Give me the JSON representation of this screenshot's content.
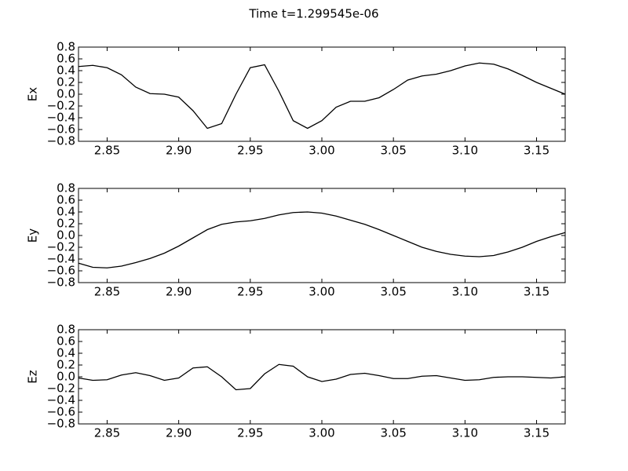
{
  "title": "Time t=1.299545e-06",
  "chart_data": [
    {
      "type": "line",
      "ylabel": "Ex",
      "color": "#000000",
      "x": [
        2.83,
        2.84,
        2.85,
        2.86,
        2.87,
        2.88,
        2.89,
        2.9,
        2.91,
        2.92,
        2.93,
        2.94,
        2.95,
        2.96,
        2.97,
        2.98,
        2.99,
        3.0,
        3.01,
        3.02,
        3.03,
        3.04,
        3.05,
        3.06,
        3.07,
        3.08,
        3.09,
        3.1,
        3.11,
        3.12,
        3.13,
        3.14,
        3.15,
        3.16,
        3.17
      ],
      "values": [
        0.47,
        0.49,
        0.45,
        0.33,
        0.12,
        0.01,
        0.0,
        -0.05,
        -0.28,
        -0.58,
        -0.5,
        0.0,
        0.45,
        0.5,
        0.05,
        -0.45,
        -0.58,
        -0.45,
        -0.22,
        -0.12,
        -0.12,
        -0.06,
        0.08,
        0.24,
        0.31,
        0.34,
        0.4,
        0.48,
        0.53,
        0.51,
        0.43,
        0.32,
        0.2,
        0.1,
        0.0
      ],
      "xlim": [
        2.83,
        3.17
      ],
      "ylim": [
        -0.8,
        0.8
      ],
      "xticks": [
        2.85,
        {
          "value": 2.9,
          "label": "2.90"
        },
        2.95,
        {
          "value": 3.0,
          "label": "3.00"
        },
        3.05,
        {
          "value": 3.1,
          "label": "3.10"
        },
        3.15
      ],
      "yticks": [
        {
          "value": -0.8,
          "label": "−0.8"
        },
        {
          "value": -0.6,
          "label": "−0.6"
        },
        {
          "value": -0.4,
          "label": "−0.4"
        },
        {
          "value": -0.2,
          "label": "−0.2"
        },
        {
          "value": 0,
          "label": "0.0"
        },
        0.2,
        0.4,
        0.6,
        0.8
      ]
    },
    {
      "type": "line",
      "ylabel": "Ey",
      "color": "#000000",
      "x": [
        2.83,
        2.84,
        2.85,
        2.86,
        2.87,
        2.88,
        2.89,
        2.9,
        2.91,
        2.92,
        2.93,
        2.94,
        2.95,
        2.96,
        2.97,
        2.98,
        2.99,
        3.0,
        3.01,
        3.02,
        3.03,
        3.04,
        3.05,
        3.06,
        3.07,
        3.08,
        3.09,
        3.1,
        3.11,
        3.12,
        3.13,
        3.14,
        3.15,
        3.16,
        3.17
      ],
      "values": [
        -0.47,
        -0.54,
        -0.55,
        -0.52,
        -0.46,
        -0.39,
        -0.3,
        -0.18,
        -0.04,
        0.1,
        0.19,
        0.23,
        0.25,
        0.29,
        0.35,
        0.39,
        0.4,
        0.38,
        0.33,
        0.26,
        0.19,
        0.1,
        0.0,
        -0.1,
        -0.2,
        -0.27,
        -0.32,
        -0.35,
        -0.36,
        -0.34,
        -0.28,
        -0.2,
        -0.1,
        -0.02,
        0.05
      ],
      "xlim": [
        2.83,
        3.17
      ],
      "ylim": [
        -0.8,
        0.8
      ],
      "xticks": [
        2.85,
        {
          "value": 2.9,
          "label": "2.90"
        },
        2.95,
        {
          "value": 3.0,
          "label": "3.00"
        },
        3.05,
        {
          "value": 3.1,
          "label": "3.10"
        },
        3.15
      ],
      "yticks": [
        {
          "value": -0.8,
          "label": "−0.8"
        },
        {
          "value": -0.6,
          "label": "−0.6"
        },
        {
          "value": -0.4,
          "label": "−0.4"
        },
        {
          "value": -0.2,
          "label": "−0.2"
        },
        {
          "value": 0,
          "label": "0.0"
        },
        0.2,
        0.4,
        0.6,
        0.8
      ]
    },
    {
      "type": "line",
      "ylabel": "Ez",
      "color": "#000000",
      "x": [
        2.83,
        2.84,
        2.85,
        2.86,
        2.87,
        2.88,
        2.89,
        2.9,
        2.91,
        2.92,
        2.93,
        2.94,
        2.95,
        2.96,
        2.97,
        2.98,
        2.99,
        3.0,
        3.01,
        3.02,
        3.03,
        3.04,
        3.05,
        3.06,
        3.07,
        3.08,
        3.09,
        3.1,
        3.11,
        3.12,
        3.13,
        3.14,
        3.15,
        3.16,
        3.17
      ],
      "values": [
        -0.02,
        -0.06,
        -0.05,
        0.03,
        0.07,
        0.02,
        -0.06,
        -0.02,
        0.15,
        0.17,
        0.0,
        -0.22,
        -0.2,
        0.05,
        0.21,
        0.18,
        0.0,
        -0.08,
        -0.04,
        0.04,
        0.06,
        0.02,
        -0.03,
        -0.03,
        0.01,
        0.02,
        -0.02,
        -0.06,
        -0.05,
        -0.01,
        0.0,
        0.0,
        -0.01,
        -0.02,
        0.0
      ],
      "xlim": [
        2.83,
        3.17
      ],
      "ylim": [
        -0.8,
        0.8
      ],
      "xticks": [
        2.85,
        {
          "value": 2.9,
          "label": "2.90"
        },
        2.95,
        {
          "value": 3.0,
          "label": "3.00"
        },
        3.05,
        {
          "value": 3.1,
          "label": "3.10"
        },
        3.15
      ],
      "yticks": [
        {
          "value": -0.8,
          "label": "−0.8"
        },
        {
          "value": -0.6,
          "label": "−0.6"
        },
        {
          "value": -0.4,
          "label": "−0.4"
        },
        {
          "value": -0.2,
          "label": "−0.2"
        },
        {
          "value": 0,
          "label": "0.0"
        },
        0.2,
        0.4,
        0.6,
        0.8
      ]
    }
  ]
}
